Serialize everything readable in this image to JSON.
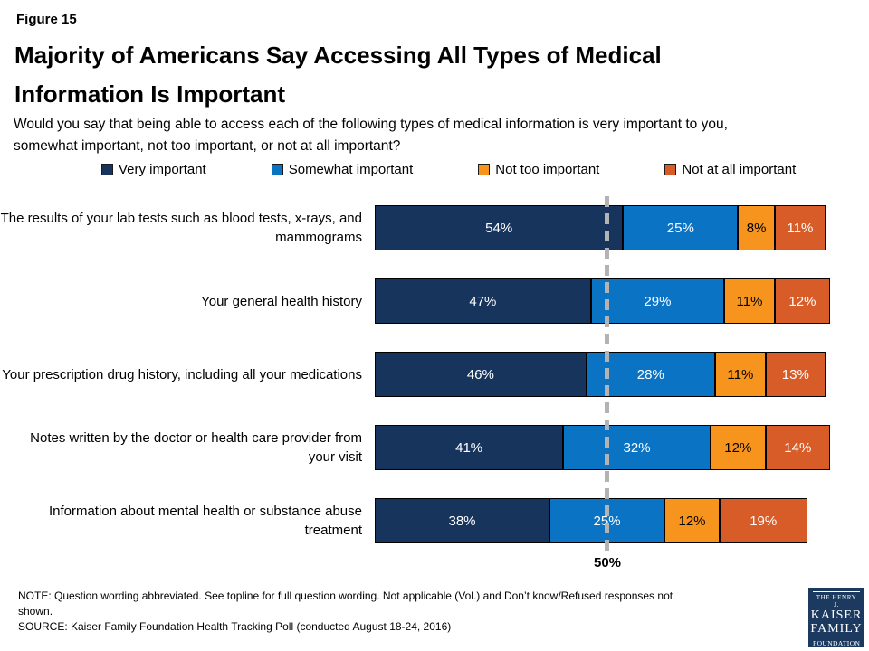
{
  "header": {
    "figure_label": "Figure 15",
    "title_lines": [
      "Majority of Americans Say Accessing All Types of Medical",
      "Information Is Important"
    ],
    "subtitle_lines": [
      "Would you say that being able to access each of the following types of medical information is very important to you,",
      "somewhat important, not too important, or not at all important?"
    ]
  },
  "chart_data": {
    "type": "bar",
    "stacked": true,
    "orientation": "horizontal",
    "unit": "%",
    "xlim": [
      0,
      100
    ],
    "grid": false,
    "legend_position": "top",
    "categories": [
      "The results of your lab tests such as blood tests, x-rays, and mammograms",
      "Your general health history",
      "Your prescription drug history, including all your medications",
      "Notes written by the doctor or health care provider from your visit",
      "Information about mental health or substance abuse treatment"
    ],
    "series": [
      {
        "name": "Very important",
        "color": "#16345C",
        "values": [
          54,
          47,
          46,
          41,
          38
        ]
      },
      {
        "name": "Somewhat important",
        "color": "#0B73C4",
        "values": [
          25,
          29,
          28,
          32,
          25
        ]
      },
      {
        "name": "Not too important",
        "color": "#F7941E",
        "values": [
          8,
          11,
          11,
          12,
          12
        ]
      },
      {
        "name": "Not at all important",
        "color": "#D85C27",
        "values": [
          11,
          12,
          13,
          14,
          19
        ]
      }
    ],
    "reference_line": {
      "value": 50,
      "label": "50%",
      "color": "#B3B3B3"
    }
  },
  "footer": {
    "note_lines": [
      "NOTE: Question wording abbreviated. See topline for full question wording. Not applicable (Vol.) and Don’t know/Refused responses not",
      "shown."
    ],
    "source": "SOURCE: Kaiser Family Foundation Health Tracking Poll (conducted August 18-24, 2016)",
    "logo": {
      "top": "THE HENRY J.",
      "name1": "KAISER",
      "name2": "FAMILY",
      "bottom": "FOUNDATION",
      "color": "#1C3A60"
    }
  }
}
